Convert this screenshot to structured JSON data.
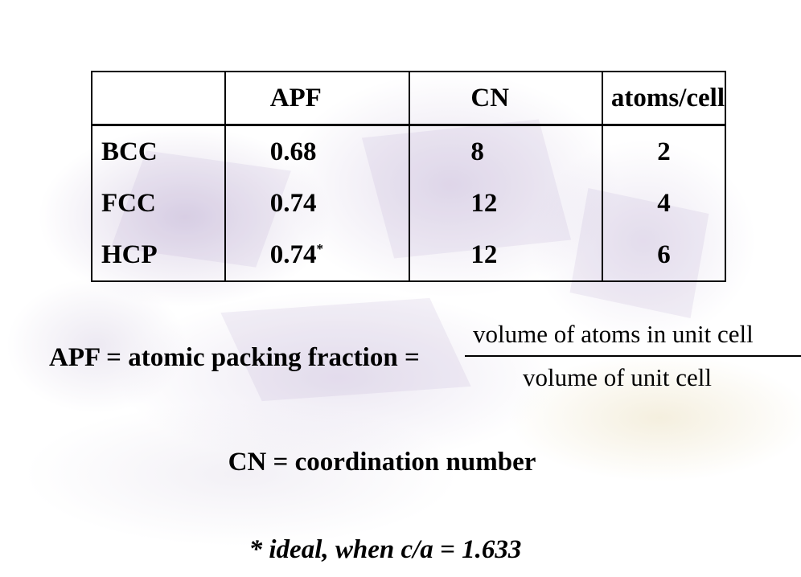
{
  "table": {
    "headers": [
      "",
      "APF",
      "CN",
      "atoms/cell"
    ],
    "rows": [
      {
        "structure": "BCC",
        "apf": "0.68",
        "apf_note": "",
        "cn": "8",
        "atoms": "2"
      },
      {
        "structure": "FCC",
        "apf": "0.74",
        "apf_note": "",
        "cn": "12",
        "atoms": "4"
      },
      {
        "structure": "HCP",
        "apf": "0.74",
        "apf_note": "*",
        "cn": "12",
        "atoms": "6"
      }
    ]
  },
  "apf_definition": {
    "lhs": "APF = atomic packing fraction =",
    "numerator": "volume of atoms in unit cell",
    "denominator": "volume of unit cell"
  },
  "cn_definition": "CN = coordination number",
  "footnote": "* ideal, when c/a = 1.633"
}
